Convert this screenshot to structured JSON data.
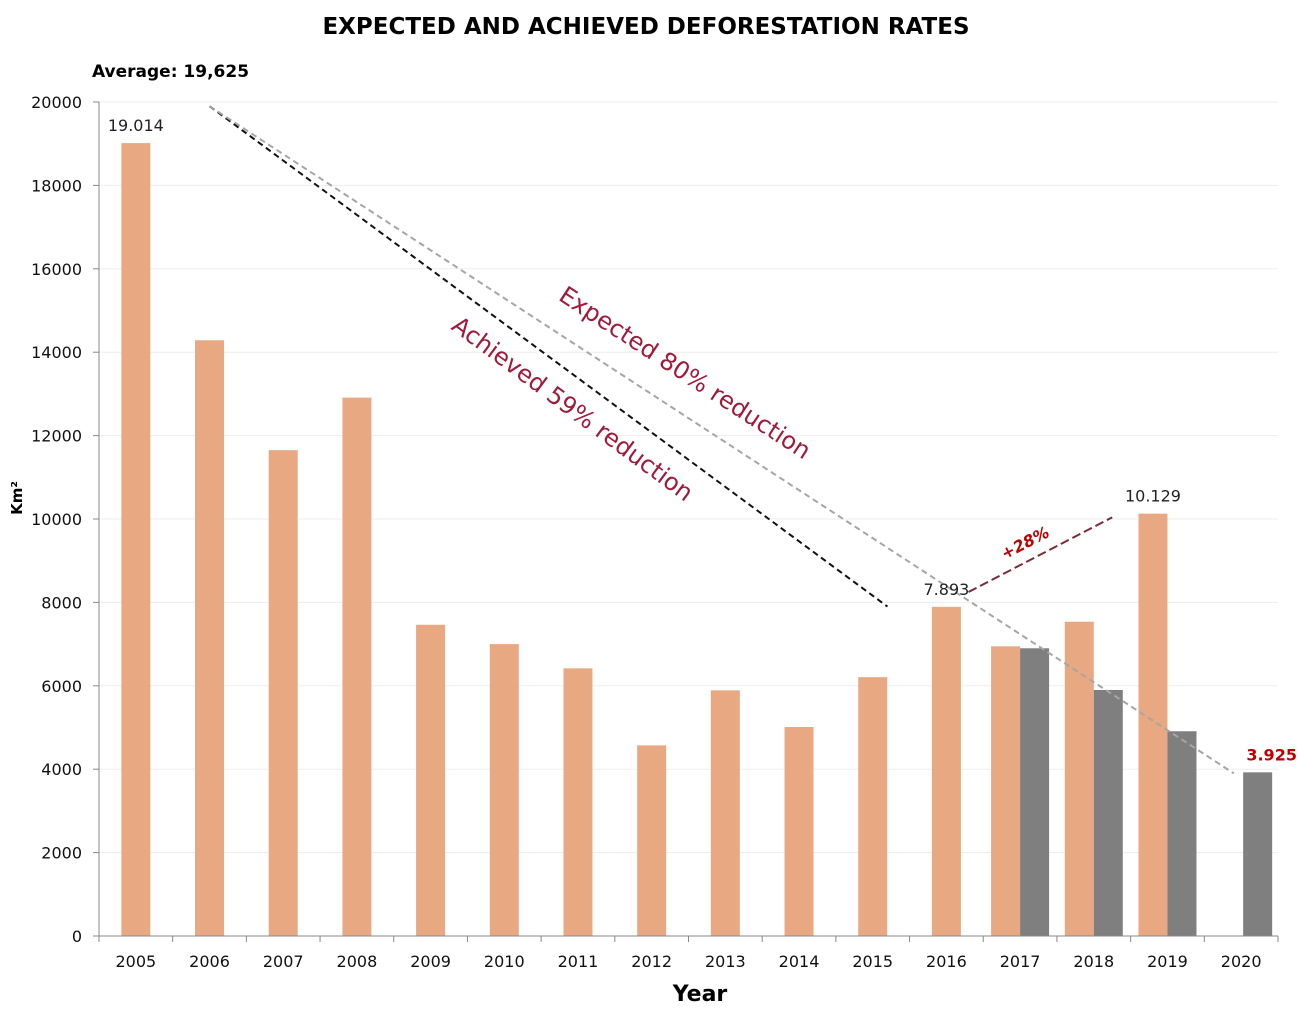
{
  "chart_data": {
    "type": "bar",
    "title": "EXPECTED AND ACHIEVED DEFORESTATION RATES",
    "subtitle": "Average: 19,625",
    "xlabel": "Year",
    "ylabel": "Km²",
    "ylim": [
      0,
      20000
    ],
    "yticks": [
      0,
      2000,
      4000,
      6000,
      8000,
      10000,
      12000,
      14000,
      16000,
      18000,
      20000
    ],
    "grid": true,
    "categories": [
      "2005",
      "2006",
      "2007",
      "2008",
      "2009",
      "2010",
      "2011",
      "2012",
      "2013",
      "2014",
      "2015",
      "2016",
      "2017",
      "2018",
      "2019",
      "2020"
    ],
    "series": [
      {
        "name": "Achieved",
        "color": "#e8a882",
        "values": [
          19014,
          14286,
          11651,
          12911,
          7464,
          7000,
          6418,
          4571,
          5891,
          5012,
          6207,
          7893,
          6947,
          7536,
          10129,
          null
        ]
      },
      {
        "name": "Expected",
        "color": "#7f7f7f",
        "values": [
          null,
          null,
          null,
          null,
          null,
          null,
          null,
          null,
          null,
          null,
          null,
          null,
          6900,
          5900,
          4910,
          3925
        ]
      }
    ],
    "data_labels": [
      {
        "category": "2005",
        "series": "Achieved",
        "text": "19.014"
      },
      {
        "category": "2016",
        "series": "Achieved",
        "text": "7.893"
      },
      {
        "category": "2019",
        "series": "Achieved",
        "text": "10.129"
      },
      {
        "category": "2020",
        "series": "Expected",
        "text": "3.925",
        "color": "#c00000"
      }
    ],
    "trend_lines": [
      {
        "name": "achieved-trend",
        "style": "dashed",
        "color": "#111111",
        "from": {
          "x": "2006",
          "y": 19900
        },
        "to": {
          "x": "2015.2",
          "y": 7900
        }
      },
      {
        "name": "expected-trend",
        "style": "dashed",
        "color": "#a6a6a6",
        "from": {
          "x": "2006",
          "y": 19900
        },
        "to": {
          "x": "2019.9",
          "y": 3900
        }
      },
      {
        "name": "increase-arrow",
        "style": "dashed",
        "color": "#7b2a3a",
        "from": {
          "x": "2016.3",
          "y": 8250
        },
        "to": {
          "x": "2018.25",
          "y": 10040
        }
      }
    ],
    "annotations": [
      {
        "name": "expected-annotation",
        "text": "Expected 80% reduction",
        "color": "#a01a3a"
      },
      {
        "name": "achieved-annotation",
        "text": "Achieved 59% reduction",
        "color": "#a01a3a"
      },
      {
        "name": "increase-annotation",
        "text": "+28%",
        "color": "#c00000"
      }
    ]
  }
}
